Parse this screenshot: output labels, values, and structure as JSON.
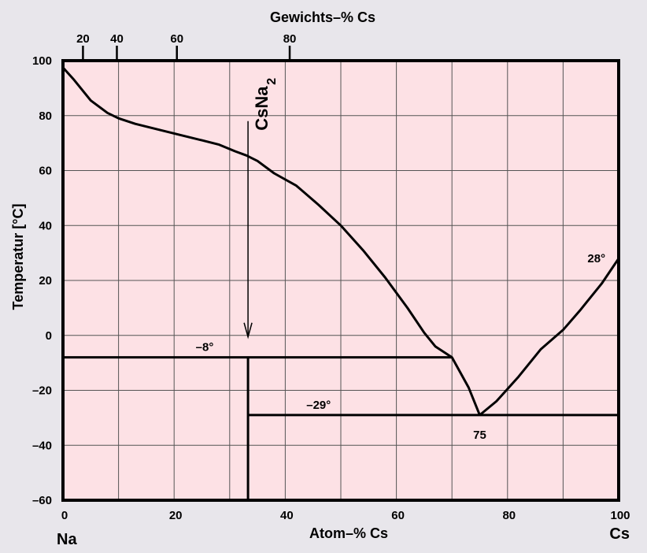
{
  "chart_data": {
    "type": "line",
    "title": "",
    "xlabel": "Atom–% Cs",
    "x2label": "Gewichts–% Cs",
    "ylabel": "Temperatur [°C]",
    "xlim": [
      0,
      100
    ],
    "ylim": [
      -60,
      100
    ],
    "grid": true,
    "background": "#fde1e5",
    "x_ticks": [
      0,
      20,
      40,
      60,
      80,
      100
    ],
    "x_tick_labels": [
      "0",
      "20",
      "40",
      "60",
      "80",
      "100"
    ],
    "x_grid": [
      0,
      10,
      20,
      30,
      40,
      50,
      60,
      70,
      80,
      90,
      100
    ],
    "y_ticks": [
      -60,
      -40,
      -20,
      0,
      20,
      40,
      60,
      80,
      100
    ],
    "y_tick_labels": [
      "–60",
      "–40",
      "–20",
      "0",
      "20",
      "40",
      "60",
      "80",
      "100"
    ],
    "top_ticks": [
      {
        "label": "20",
        "x": 3.6
      },
      {
        "label": "40",
        "x": 9.7
      },
      {
        "label": "60",
        "x": 20.5
      },
      {
        "label": "80",
        "x": 40.8
      }
    ],
    "end_labels": {
      "left": "Na",
      "right": "Cs"
    },
    "liquidus_na_side": [
      [
        0,
        97.5
      ],
      [
        2,
        93
      ],
      [
        5,
        85.5
      ],
      [
        8,
        81
      ],
      [
        10,
        79
      ],
      [
        13,
        77
      ],
      [
        17,
        75
      ],
      [
        21,
        73
      ],
      [
        25,
        71
      ],
      [
        28,
        69.5
      ],
      [
        31,
        67
      ],
      [
        33,
        65.5
      ],
      [
        35,
        63.5
      ],
      [
        38,
        59
      ],
      [
        42,
        54.5
      ],
      [
        46,
        47.5
      ],
      [
        50,
        40
      ],
      [
        54,
        31
      ],
      [
        58,
        21
      ],
      [
        62,
        10
      ],
      [
        65,
        1
      ],
      [
        67,
        -4
      ],
      [
        70,
        -8
      ],
      [
        73,
        -19
      ],
      [
        75,
        -29
      ]
    ],
    "liquidus_cs_side": [
      [
        75,
        -29
      ],
      [
        78,
        -24
      ],
      [
        82,
        -15
      ],
      [
        86,
        -5
      ],
      [
        90,
        2
      ],
      [
        93,
        9
      ],
      [
        95,
        14
      ],
      [
        97,
        19
      ],
      [
        99,
        25
      ],
      [
        100,
        28
      ]
    ],
    "eutectic_na": {
      "t": -8,
      "x_range": [
        0,
        70
      ],
      "label": "–8°"
    },
    "eutectic_cs": {
      "t": -29,
      "x_range": [
        33.3,
        100
      ],
      "label": "–29°"
    },
    "compound": {
      "name": "CsNa",
      "subscript": "2",
      "x": 33.3,
      "y_top": 78,
      "y_bottom": 0
    },
    "compound_line": {
      "x": 33.3,
      "y_range": [
        -60,
        -8
      ]
    },
    "eutectic_composition_label": "75",
    "cs_melting_label": "28°"
  }
}
